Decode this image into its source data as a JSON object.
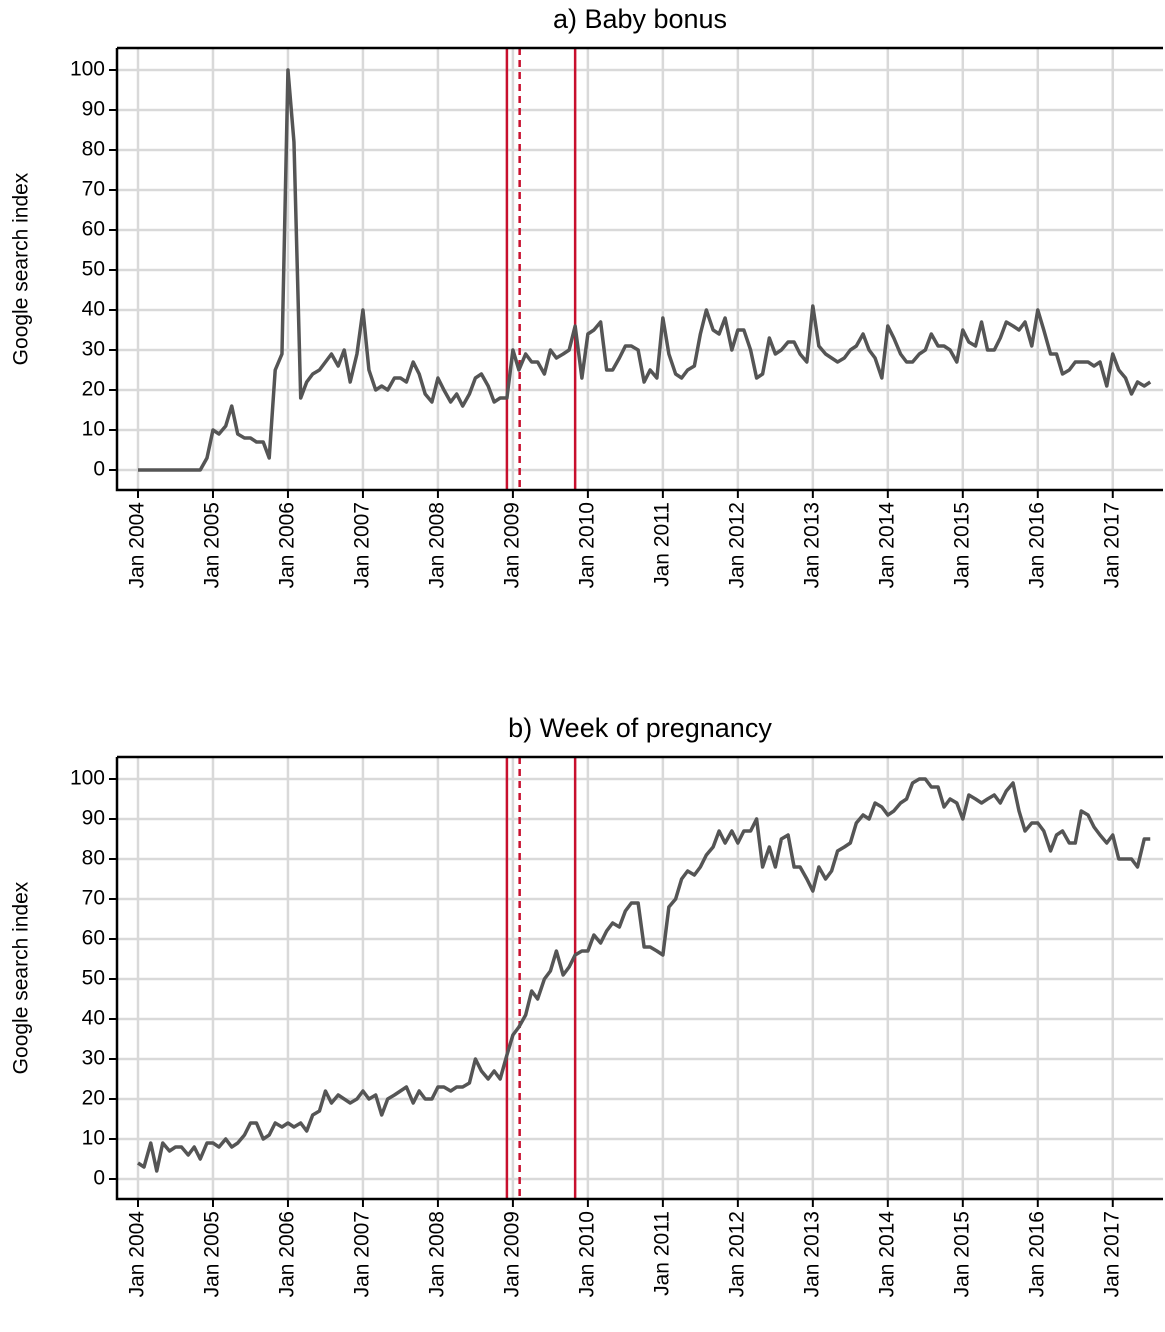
{
  "chart_data": [
    {
      "type": "line",
      "title": "a) Baby bonus",
      "y_label": "Google search index",
      "grid": true,
      "xlim": [
        2003.72,
        2017.67
      ],
      "ylim": [
        -5,
        105.5
      ],
      "yticks": [
        0,
        10,
        20,
        30,
        40,
        50,
        60,
        70,
        80,
        90,
        100
      ],
      "xticks": [
        {
          "value": 2004,
          "label": "Jan 2004"
        },
        {
          "value": 2005,
          "label": "Jan 2005"
        },
        {
          "value": 2006,
          "label": "Jan 2006"
        },
        {
          "value": 2007,
          "label": "Jan 2007"
        },
        {
          "value": 2008,
          "label": "Jan 2008"
        },
        {
          "value": 2009,
          "label": "Jan 2009"
        },
        {
          "value": 2010,
          "label": "Jan 2010"
        },
        {
          "value": 2011,
          "label": "Jan 2011"
        },
        {
          "value": 2012,
          "label": "Jan 2012"
        },
        {
          "value": 2013,
          "label": "Jan 2013"
        },
        {
          "value": 2014,
          "label": "Jan 2014"
        },
        {
          "value": 2015,
          "label": "Jan 2015"
        },
        {
          "value": 2016,
          "label": "Jan 2016"
        },
        {
          "value": 2017,
          "label": "Jan 2017"
        }
      ],
      "vlines": [
        {
          "x": 2008.92,
          "dashed": false
        },
        {
          "x": 2009.09,
          "dashed": true
        },
        {
          "x": 2009.83,
          "dashed": false
        }
      ],
      "vline_color": "#c8102e",
      "color": "#555555",
      "x": [
        2004,
        2004.08,
        2004.17,
        2004.25,
        2004.33,
        2004.42,
        2004.5,
        2004.58,
        2004.67,
        2004.75,
        2004.83,
        2004.92,
        2005,
        2005.08,
        2005.17,
        2005.25,
        2005.33,
        2005.42,
        2005.5,
        2005.58,
        2005.67,
        2005.75,
        2005.83,
        2005.92,
        2006,
        2006.08,
        2006.17,
        2006.25,
        2006.33,
        2006.42,
        2006.5,
        2006.58,
        2006.67,
        2006.75,
        2006.83,
        2006.92,
        2007,
        2007.08,
        2007.17,
        2007.25,
        2007.33,
        2007.42,
        2007.5,
        2007.58,
        2007.67,
        2007.75,
        2007.83,
        2007.92,
        2008,
        2008.08,
        2008.17,
        2008.25,
        2008.33,
        2008.42,
        2008.5,
        2008.58,
        2008.67,
        2008.75,
        2008.83,
        2008.92,
        2009,
        2009.08,
        2009.17,
        2009.25,
        2009.33,
        2009.42,
        2009.5,
        2009.58,
        2009.67,
        2009.75,
        2009.83,
        2009.92,
        2010,
        2010.08,
        2010.17,
        2010.25,
        2010.33,
        2010.42,
        2010.5,
        2010.58,
        2010.67,
        2010.75,
        2010.83,
        2010.92,
        2011,
        2011.08,
        2011.17,
        2011.25,
        2011.33,
        2011.42,
        2011.5,
        2011.58,
        2011.67,
        2011.75,
        2011.83,
        2011.92,
        2012,
        2012.08,
        2012.17,
        2012.25,
        2012.33,
        2012.42,
        2012.5,
        2012.58,
        2012.67,
        2012.75,
        2012.83,
        2012.92,
        2013,
        2013.08,
        2013.17,
        2013.25,
        2013.33,
        2013.42,
        2013.5,
        2013.58,
        2013.67,
        2013.75,
        2013.83,
        2013.92,
        2014,
        2014.08,
        2014.17,
        2014.25,
        2014.33,
        2014.42,
        2014.5,
        2014.58,
        2014.67,
        2014.75,
        2014.83,
        2014.92,
        2015,
        2015.08,
        2015.17,
        2015.25,
        2015.33,
        2015.42,
        2015.5,
        2015.58,
        2015.67,
        2015.75,
        2015.83,
        2015.92,
        2016,
        2016.08,
        2016.17,
        2016.25,
        2016.33,
        2016.42,
        2016.5,
        2016.58,
        2016.67,
        2016.75,
        2016.83,
        2016.92,
        2017,
        2017.08,
        2017.17,
        2017.25,
        2017.33,
        2017.42,
        2017.5
      ],
      "values": [
        0,
        0,
        0,
        0,
        0,
        0,
        0,
        0,
        0,
        0,
        0,
        3,
        10,
        9,
        11,
        16,
        9,
        8,
        8,
        7,
        7,
        3,
        25,
        29,
        100,
        82,
        18,
        22,
        24,
        25,
        27,
        29,
        26,
        30,
        22,
        29,
        40,
        25,
        20,
        21,
        20,
        23,
        23,
        22,
        27,
        24,
        19,
        17,
        23,
        20,
        17,
        19,
        16,
        19,
        23,
        24,
        21,
        17,
        18,
        18,
        30,
        25,
        29,
        27,
        27,
        24,
        30,
        28,
        29,
        30,
        36,
        23,
        34,
        35,
        37,
        25,
        25,
        28,
        31,
        31,
        30,
        22,
        25,
        23,
        38,
        29,
        24,
        23,
        25,
        26,
        34,
        40,
        35,
        34,
        38,
        30,
        35,
        35,
        30,
        23,
        24,
        33,
        29,
        30,
        32,
        32,
        29,
        27,
        41,
        31,
        29,
        28,
        27,
        28,
        30,
        31,
        34,
        30,
        28,
        23,
        36,
        33,
        29,
        27,
        27,
        29,
        30,
        34,
        31,
        31,
        30,
        27,
        35,
        32,
        31,
        37,
        30,
        30,
        33,
        37,
        36,
        35,
        37,
        31,
        40,
        35,
        29,
        29,
        24,
        25,
        27,
        27,
        27,
        26,
        27,
        21,
        29,
        25,
        23,
        19,
        22,
        21,
        22
      ]
    },
    {
      "type": "line",
      "title": "b) Week of pregnancy",
      "y_label": "Google search index",
      "grid": true,
      "xlim": [
        2003.72,
        2017.67
      ],
      "ylim": [
        -5,
        105.5
      ],
      "yticks": [
        0,
        10,
        20,
        30,
        40,
        50,
        60,
        70,
        80,
        90,
        100
      ],
      "xticks": [
        {
          "value": 2004,
          "label": "Jan 2004"
        },
        {
          "value": 2005,
          "label": "Jan 2005"
        },
        {
          "value": 2006,
          "label": "Jan 2006"
        },
        {
          "value": 2007,
          "label": "Jan 2007"
        },
        {
          "value": 2008,
          "label": "Jan 2008"
        },
        {
          "value": 2009,
          "label": "Jan 2009"
        },
        {
          "value": 2010,
          "label": "Jan 2010"
        },
        {
          "value": 2011,
          "label": "Jan 2011"
        },
        {
          "value": 2012,
          "label": "Jan 2012"
        },
        {
          "value": 2013,
          "label": "Jan 2013"
        },
        {
          "value": 2014,
          "label": "Jan 2014"
        },
        {
          "value": 2015,
          "label": "Jan 2015"
        },
        {
          "value": 2016,
          "label": "Jan 2016"
        },
        {
          "value": 2017,
          "label": "Jan 2017"
        }
      ],
      "vlines": [
        {
          "x": 2008.92,
          "dashed": false
        },
        {
          "x": 2009.09,
          "dashed": true
        },
        {
          "x": 2009.83,
          "dashed": false
        }
      ],
      "vline_color": "#c8102e",
      "color": "#555555",
      "x": [
        2004,
        2004.08,
        2004.17,
        2004.25,
        2004.33,
        2004.42,
        2004.5,
        2004.58,
        2004.67,
        2004.75,
        2004.83,
        2004.92,
        2005,
        2005.08,
        2005.17,
        2005.25,
        2005.33,
        2005.42,
        2005.5,
        2005.58,
        2005.67,
        2005.75,
        2005.83,
        2005.92,
        2006,
        2006.08,
        2006.17,
        2006.25,
        2006.33,
        2006.42,
        2006.5,
        2006.58,
        2006.67,
        2006.75,
        2006.83,
        2006.92,
        2007,
        2007.08,
        2007.17,
        2007.25,
        2007.33,
        2007.42,
        2007.5,
        2007.58,
        2007.67,
        2007.75,
        2007.83,
        2007.92,
        2008,
        2008.08,
        2008.17,
        2008.25,
        2008.33,
        2008.42,
        2008.5,
        2008.58,
        2008.67,
        2008.75,
        2008.83,
        2008.92,
        2009,
        2009.08,
        2009.17,
        2009.25,
        2009.33,
        2009.42,
        2009.5,
        2009.58,
        2009.67,
        2009.75,
        2009.83,
        2009.92,
        2010,
        2010.08,
        2010.17,
        2010.25,
        2010.33,
        2010.42,
        2010.5,
        2010.58,
        2010.67,
        2010.75,
        2010.83,
        2010.92,
        2011,
        2011.08,
        2011.17,
        2011.25,
        2011.33,
        2011.42,
        2011.5,
        2011.58,
        2011.67,
        2011.75,
        2011.83,
        2011.92,
        2012,
        2012.08,
        2012.17,
        2012.25,
        2012.33,
        2012.42,
        2012.5,
        2012.58,
        2012.67,
        2012.75,
        2012.83,
        2012.92,
        2013,
        2013.08,
        2013.17,
        2013.25,
        2013.33,
        2013.42,
        2013.5,
        2013.58,
        2013.67,
        2013.75,
        2013.83,
        2013.92,
        2014,
        2014.08,
        2014.17,
        2014.25,
        2014.33,
        2014.42,
        2014.5,
        2014.58,
        2014.67,
        2014.75,
        2014.83,
        2014.92,
        2015,
        2015.08,
        2015.17,
        2015.25,
        2015.33,
        2015.42,
        2015.5,
        2015.58,
        2015.67,
        2015.75,
        2015.83,
        2015.92,
        2016,
        2016.08,
        2016.17,
        2016.25,
        2016.33,
        2016.42,
        2016.5,
        2016.58,
        2016.67,
        2016.75,
        2016.83,
        2016.92,
        2017,
        2017.08,
        2017.17,
        2017.25,
        2017.33,
        2017.42,
        2017.5
      ],
      "values": [
        4,
        3,
        9,
        2,
        9,
        7,
        8,
        8,
        6,
        8,
        5,
        9,
        9,
        8,
        10,
        8,
        9,
        11,
        14,
        14,
        10,
        11,
        14,
        13,
        14,
        13,
        14,
        12,
        16,
        17,
        22,
        19,
        21,
        20,
        19,
        20,
        22,
        20,
        21,
        16,
        20,
        21,
        22,
        23,
        19,
        22,
        20,
        20,
        23,
        23,
        22,
        23,
        23,
        24,
        30,
        27,
        25,
        27,
        25,
        31,
        36,
        38,
        41,
        47,
        45,
        50,
        52,
        57,
        51,
        53,
        56,
        57,
        57,
        61,
        59,
        62,
        64,
        63,
        67,
        69,
        69,
        58,
        58,
        57,
        56,
        68,
        70,
        75,
        77,
        76,
        78,
        81,
        83,
        87,
        84,
        87,
        84,
        87,
        87,
        90,
        78,
        83,
        78,
        85,
        86,
        78,
        78,
        75,
        72,
        78,
        75,
        77,
        82,
        83,
        84,
        89,
        91,
        90,
        94,
        93,
        91,
        92,
        94,
        95,
        99,
        100,
        100,
        98,
        98,
        93,
        95,
        94,
        90,
        96,
        95,
        94,
        95,
        96,
        94,
        97,
        99,
        92,
        87,
        89,
        89,
        87,
        82,
        86,
        87,
        84,
        84,
        92,
        91,
        88,
        86,
        84,
        86,
        80,
        80,
        80,
        78,
        85,
        85
      ]
    }
  ]
}
